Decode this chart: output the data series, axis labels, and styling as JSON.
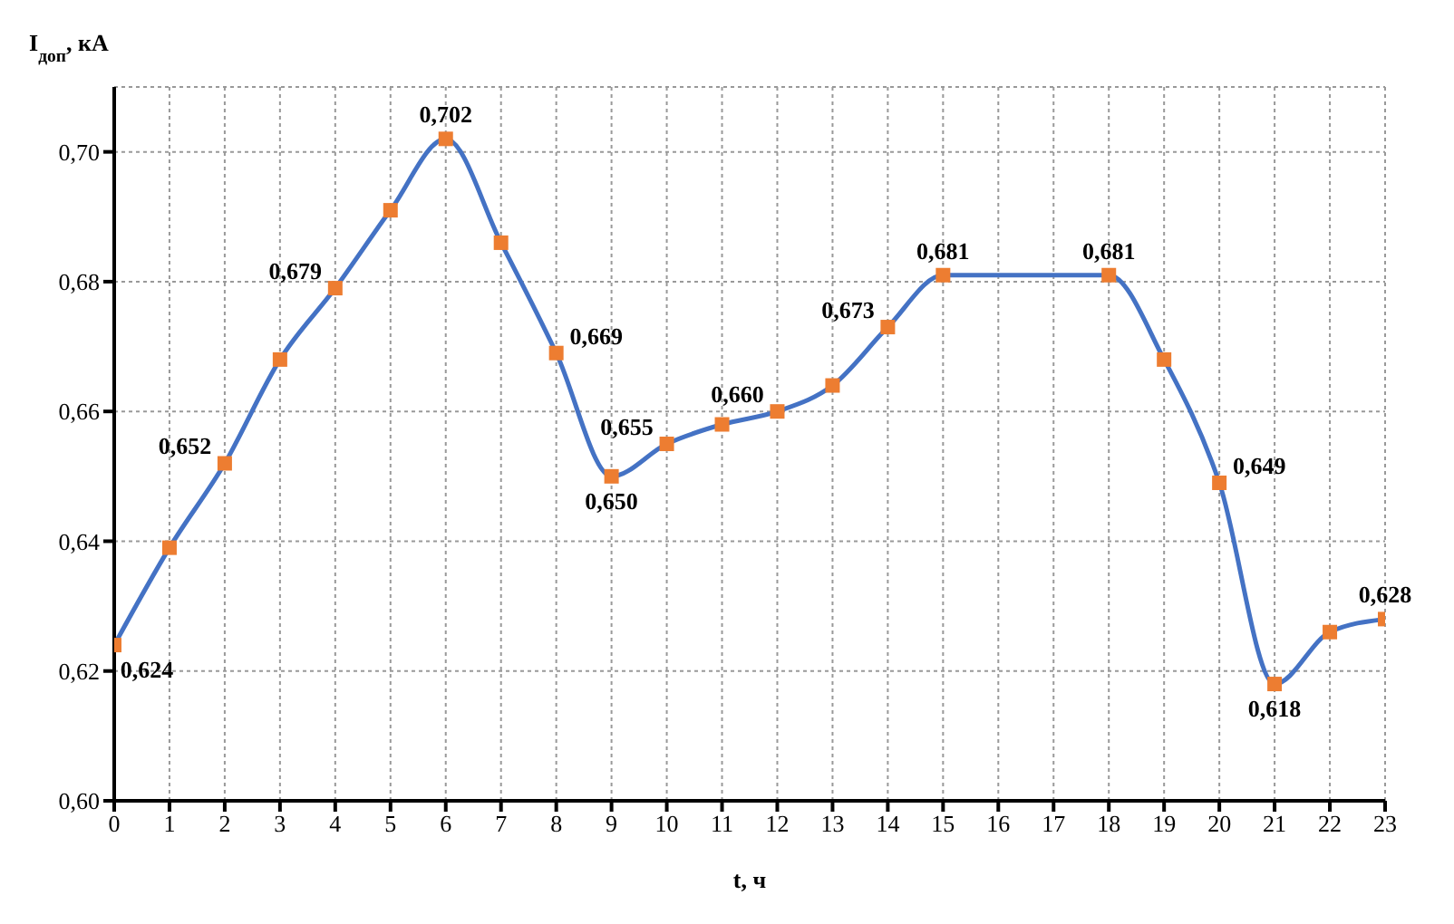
{
  "chart_data": {
    "type": "line",
    "xlabel": "t, ч",
    "ylabel": "I$_{доп}$, кА",
    "x": [
      0,
      1,
      2,
      3,
      4,
      5,
      6,
      7,
      8,
      9,
      10,
      11,
      12,
      13,
      14,
      15,
      18,
      19,
      20,
      21,
      22,
      23
    ],
    "series": [
      {
        "color": "#4472c4",
        "colors": [
          "#ed7d31",
          "#ed7d31",
          "#ed7d31",
          "#ed7d31",
          "#ed7d31",
          "#ed7d31",
          "#ed7d31",
          "#ed7d31",
          "#ed7d31",
          "#ed7d31",
          "#ed7d31",
          "#ed7d31",
          "#ed7d31",
          "#ed7d31",
          "#ed7d31",
          "#ed7d31",
          "#ed7d31",
          "#ed7d31",
          "#ed7d31",
          "#ed7d31",
          "#ed7d31",
          "#ed7d31"
        ],
        "values": [
          0.624,
          0.639,
          0.652,
          0.668,
          0.679,
          0.691,
          0.702,
          0.686,
          0.669,
          0.65,
          0.655,
          0.658,
          0.66,
          0.664,
          0.673,
          0.681,
          0.681,
          0.668,
          0.649,
          0.618,
          0.626,
          0.628
        ],
        "value_labels": [
          "0,624",
          null,
          "0,652",
          null,
          "0,679",
          null,
          "0,702",
          null,
          "0,669",
          "0,650",
          "0,655",
          null,
          "0,660",
          null,
          "0,673",
          "0,681",
          "0,681",
          null,
          "0,649",
          "0,618",
          null,
          "0,628"
        ]
      }
    ],
    "marker": "square",
    "line_style": "solid",
    "grid": true,
    "legend": false,
    "xlim": [
      0,
      23
    ],
    "xticks": [
      0,
      1,
      2,
      3,
      4,
      5,
      6,
      7,
      8,
      9,
      10,
      11,
      12,
      13,
      14,
      15,
      16,
      17,
      18,
      19,
      20,
      21,
      22,
      23
    ],
    "ylim": [
      0.6,
      0.71
    ],
    "yticks": [
      {
        "value": 0.6,
        "label": "0,60"
      },
      {
        "value": 0.62,
        "label": "0,62"
      },
      {
        "value": 0.64,
        "label": "0,64"
      },
      {
        "value": 0.66,
        "label": "0,66"
      },
      {
        "value": 0.68,
        "label": "0,68"
      },
      {
        "value": 0.7,
        "label": "0,70"
      }
    ]
  }
}
